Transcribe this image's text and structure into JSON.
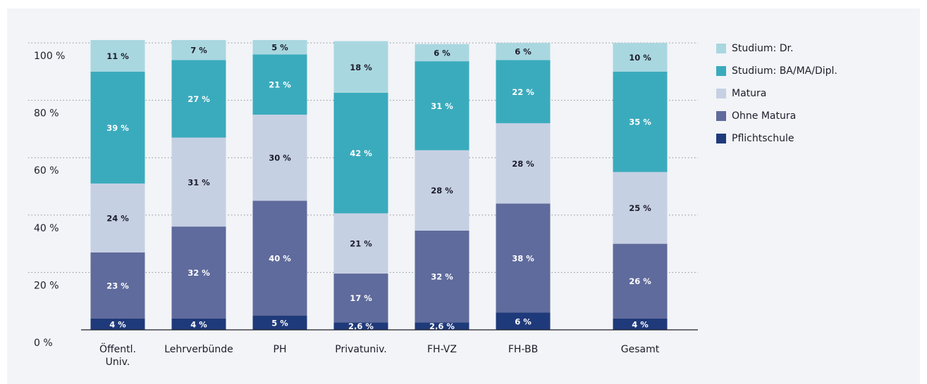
{
  "chart_data": {
    "type": "stacked_bar",
    "categories": [
      "Öffentl.\nUniv.",
      "Lehrverbünde",
      "PH",
      "Privatuniv.",
      "FH-VZ",
      "FH-BB",
      "Gesamt"
    ],
    "series": [
      {
        "name": "Pflichtschule",
        "color": "#1f3a7a",
        "values": [
          4,
          4,
          5,
          2.6,
          2.6,
          6,
          4
        ],
        "value_labels": [
          "4 %",
          "4 %",
          "5 %",
          "2,6 %",
          "2,6 %",
          "6 %",
          "4 %"
        ]
      },
      {
        "name": "Ohne Matura",
        "color": "#5f6b9c",
        "values": [
          23,
          32,
          40,
          17,
          32,
          38,
          26
        ],
        "value_labels": [
          "23 %",
          "32 %",
          "40 %",
          "17 %",
          "32 %",
          "38 %",
          "26 %"
        ]
      },
      {
        "name": "Matura",
        "color": "#c6d0e3",
        "values": [
          24,
          31,
          30,
          21,
          28,
          28,
          25
        ],
        "value_labels": [
          "24 %",
          "31 %",
          "30 %",
          "21 %",
          "28 %",
          "28 %",
          "25 %"
        ]
      },
      {
        "name": "Studium: BA/MA/Dipl.",
        "color": "#3aabbd",
        "values": [
          39,
          27,
          21,
          42,
          31,
          22,
          35
        ],
        "value_labels": [
          "39 %",
          "27 %",
          "21 %",
          "42 %",
          "31 %",
          "22 %",
          "35 %"
        ]
      },
      {
        "name": "Studium: Dr.",
        "color": "#a9d7e0",
        "values": [
          11,
          7,
          5,
          18,
          6,
          6,
          10
        ],
        "value_labels": [
          "11 %",
          "7 %",
          "5 %",
          "18 %",
          "6 %",
          "6 %",
          "10 %"
        ]
      }
    ],
    "ylim": [
      0,
      100
    ],
    "yticks": [
      {
        "value": 0,
        "label": "0 %"
      },
      {
        "value": 20,
        "label": "20 %"
      },
      {
        "value": 40,
        "label": "40 %"
      },
      {
        "value": 60,
        "label": "60 %"
      },
      {
        "value": 80,
        "label": "80 %"
      },
      {
        "value": 100,
        "label": "100 %"
      }
    ],
    "grid": true,
    "legend": "right"
  }
}
